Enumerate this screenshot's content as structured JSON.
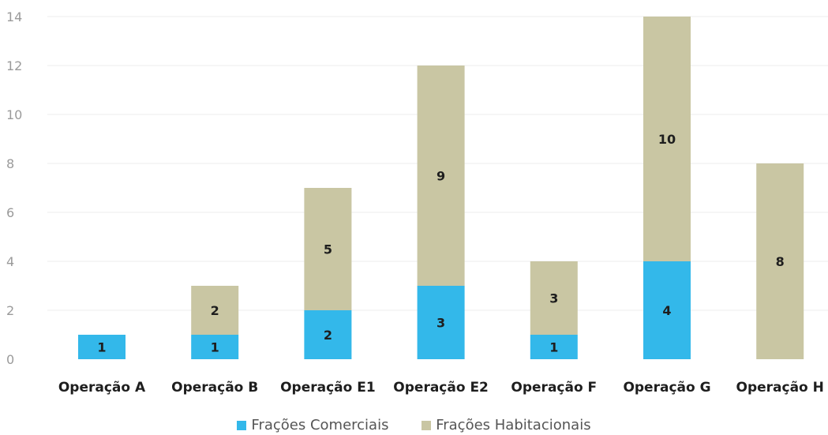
{
  "chart_data": {
    "type": "bar",
    "stacked": true,
    "categories": [
      "Operação A",
      "Operação B",
      "Operação E1",
      "Operação E2",
      "Operação F",
      "Operação G",
      "Operação H"
    ],
    "series": [
      {
        "name": "Frações Comerciais",
        "values": [
          1,
          1,
          2,
          3,
          1,
          4,
          0
        ],
        "color": "#33B8EA"
      },
      {
        "name": "Frações Habitacionais",
        "values": [
          0,
          2,
          5,
          9,
          3,
          10,
          8
        ],
        "color": "#C9C6A3"
      }
    ],
    "bar_labels": [
      [
        "1",
        "1",
        "2",
        "3",
        "1",
        "4",
        ""
      ],
      [
        "",
        "2",
        "5",
        "9",
        "3",
        "10",
        "8"
      ]
    ],
    "yticks": [
      "0",
      "2",
      "4",
      "6",
      "8",
      "10",
      "12",
      "14"
    ],
    "ylim": [
      0,
      14
    ],
    "xlabel": "",
    "ylabel": "",
    "title": "",
    "grid": true,
    "legend_position": "bottom"
  }
}
